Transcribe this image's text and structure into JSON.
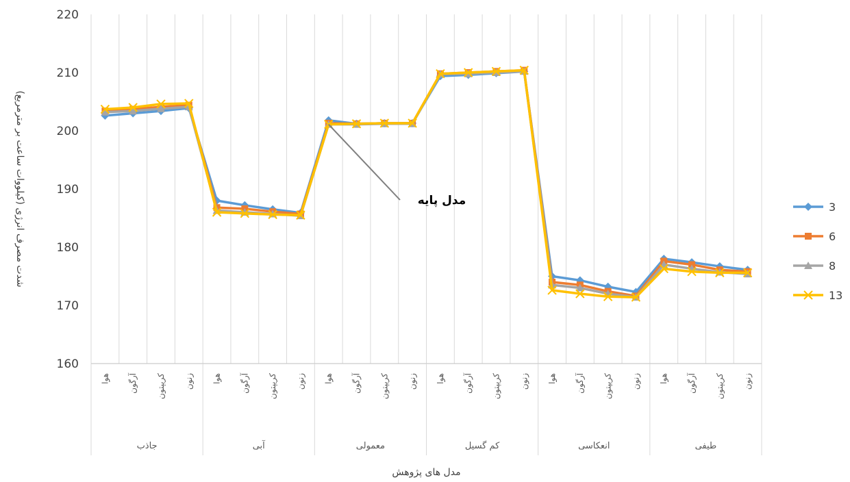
{
  "chart_data": {
    "type": "line",
    "xlabel": "مدل های پژوهش",
    "ylabel": "شدت مصرف انرژی (کیلووات ساعت بر مترمربع)",
    "ylim": [
      160,
      220
    ],
    "yticks": [
      160,
      170,
      180,
      190,
      200,
      210,
      220
    ],
    "grid": "vertical",
    "legend_position": "right",
    "categories": [
      "هوا",
      "آرگون",
      "کریپتون",
      "زنون",
      "هوا",
      "آرگون",
      "کریپتون",
      "زنون",
      "هوا",
      "آرگون",
      "کریپتون",
      "زنون",
      "هوا",
      "آرگون",
      "کریپتون",
      "زنون",
      "هوا",
      "آرگون",
      "کریپتون",
      "زنون",
      "هوا",
      "آرگون",
      "کریپتون",
      "زنون"
    ],
    "groups": [
      "جاذب",
      "آبی",
      "معمولی",
      "کم گسیل",
      "انعکاسی",
      "طیفی"
    ],
    "series": [
      {
        "name": "3",
        "color": "#5B9BD5",
        "marker": "diamond",
        "values": [
          202.6,
          203.0,
          203.4,
          203.9,
          188.0,
          187.2,
          186.5,
          185.9,
          201.8,
          201.2,
          201.3,
          201.3,
          209.4,
          209.6,
          209.9,
          210.2,
          175.0,
          174.3,
          173.2,
          172.3,
          178.0,
          177.4,
          176.7,
          176.1
        ]
      },
      {
        "name": "6",
        "color": "#ED7D31",
        "marker": "square",
        "values": [
          203.4,
          203.7,
          204.1,
          204.4,
          186.8,
          186.6,
          186.1,
          185.7,
          201.3,
          201.2,
          201.3,
          201.3,
          209.8,
          210.0,
          210.2,
          210.4,
          174.0,
          173.5,
          172.4,
          171.6,
          177.6,
          177.0,
          176.1,
          175.8
        ]
      },
      {
        "name": "8",
        "color": "#A5A5A5",
        "marker": "triangle",
        "values": [
          203.2,
          203.4,
          203.8,
          204.1,
          186.3,
          186.0,
          185.7,
          185.4,
          201.1,
          201.1,
          201.2,
          201.2,
          209.7,
          209.8,
          210.0,
          210.2,
          173.5,
          173.0,
          172.0,
          171.4,
          177.0,
          176.3,
          175.7,
          175.4
        ]
      },
      {
        "name": "13",
        "color": "#FFC000",
        "marker": "x",
        "values": [
          203.7,
          204.0,
          204.6,
          204.7,
          186.0,
          185.8,
          185.6,
          185.5,
          201.1,
          201.2,
          201.3,
          201.3,
          209.8,
          210.0,
          210.2,
          210.4,
          172.6,
          172.0,
          171.5,
          171.4,
          176.3,
          175.8,
          175.6,
          175.6
        ]
      }
    ],
    "annotation": {
      "text": "مدل پایه",
      "target_index": 8,
      "target_value": 201.1
    }
  }
}
